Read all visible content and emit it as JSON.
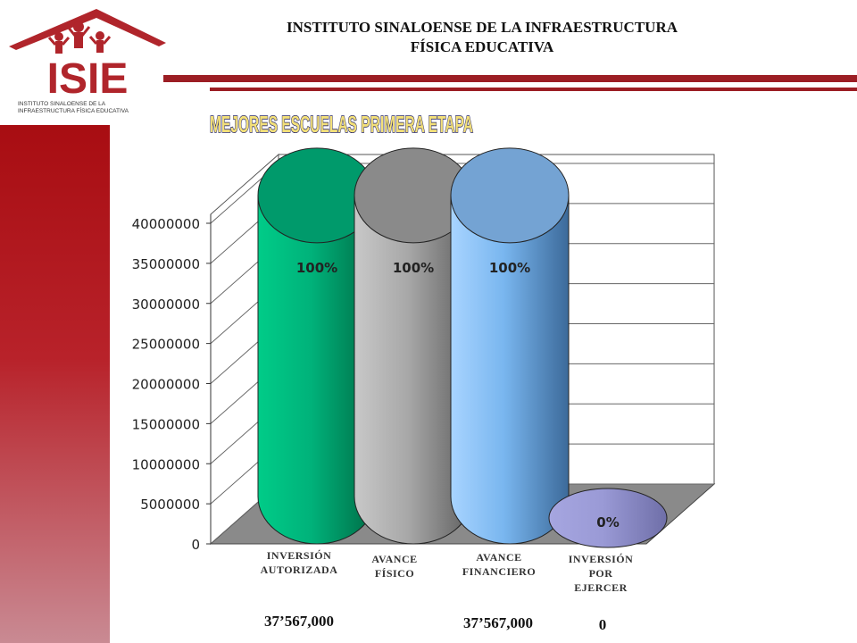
{
  "header": {
    "line1": "INSTITUTO SINALOENSE DE LA INFRAESTRUCTURA",
    "line2": "FÍSICA EDUCATIVA"
  },
  "logo": {
    "letters": "ISIE",
    "caption_line1": "INSTITUTO SINALOENSE DE LA",
    "caption_line2": "INFRAESTRUCTURA FÍSICA EDUCATIVA"
  },
  "colors": {
    "brand_red": "#a80d12",
    "bar_green": "#00b27a",
    "bar_gray": "#a0a0a0",
    "bar_blue": "#6fb0ee",
    "bar_lavender": "#9a9ad6"
  },
  "chart_data": {
    "type": "bar",
    "title": "MEJORES ESCUELAS PRIMERA ETAPA",
    "categories": [
      "INVERSIÓN AUTORIZADA",
      "AVANCE FÍSICO",
      "AVANCE FINANCIERO",
      "INVERSIÓN POR EJERCER"
    ],
    "category_lines": [
      [
        "INVERSIÓN",
        "AUTORIZADA"
      ],
      [
        "AVANCE",
        "FÍSICO"
      ],
      [
        "AVANCE",
        "FINANCIERO"
      ],
      [
        "INVERSIÓN",
        "POR",
        "EJERCER"
      ]
    ],
    "values": [
      37567000,
      37567000,
      37567000,
      0
    ],
    "data_labels": [
      "100%",
      "100%",
      "100%",
      "0%"
    ],
    "amount_labels": [
      "37’567,000",
      "",
      "37’567,000",
      "0"
    ],
    "ylim": [
      0,
      40000000
    ],
    "yticks": [
      "0",
      "5000000",
      "10000000",
      "15000000",
      "20000000",
      "25000000",
      "30000000",
      "35000000",
      "40000000"
    ],
    "grid": true,
    "style": "3d cylinder",
    "xlabel": "",
    "ylabel": ""
  }
}
